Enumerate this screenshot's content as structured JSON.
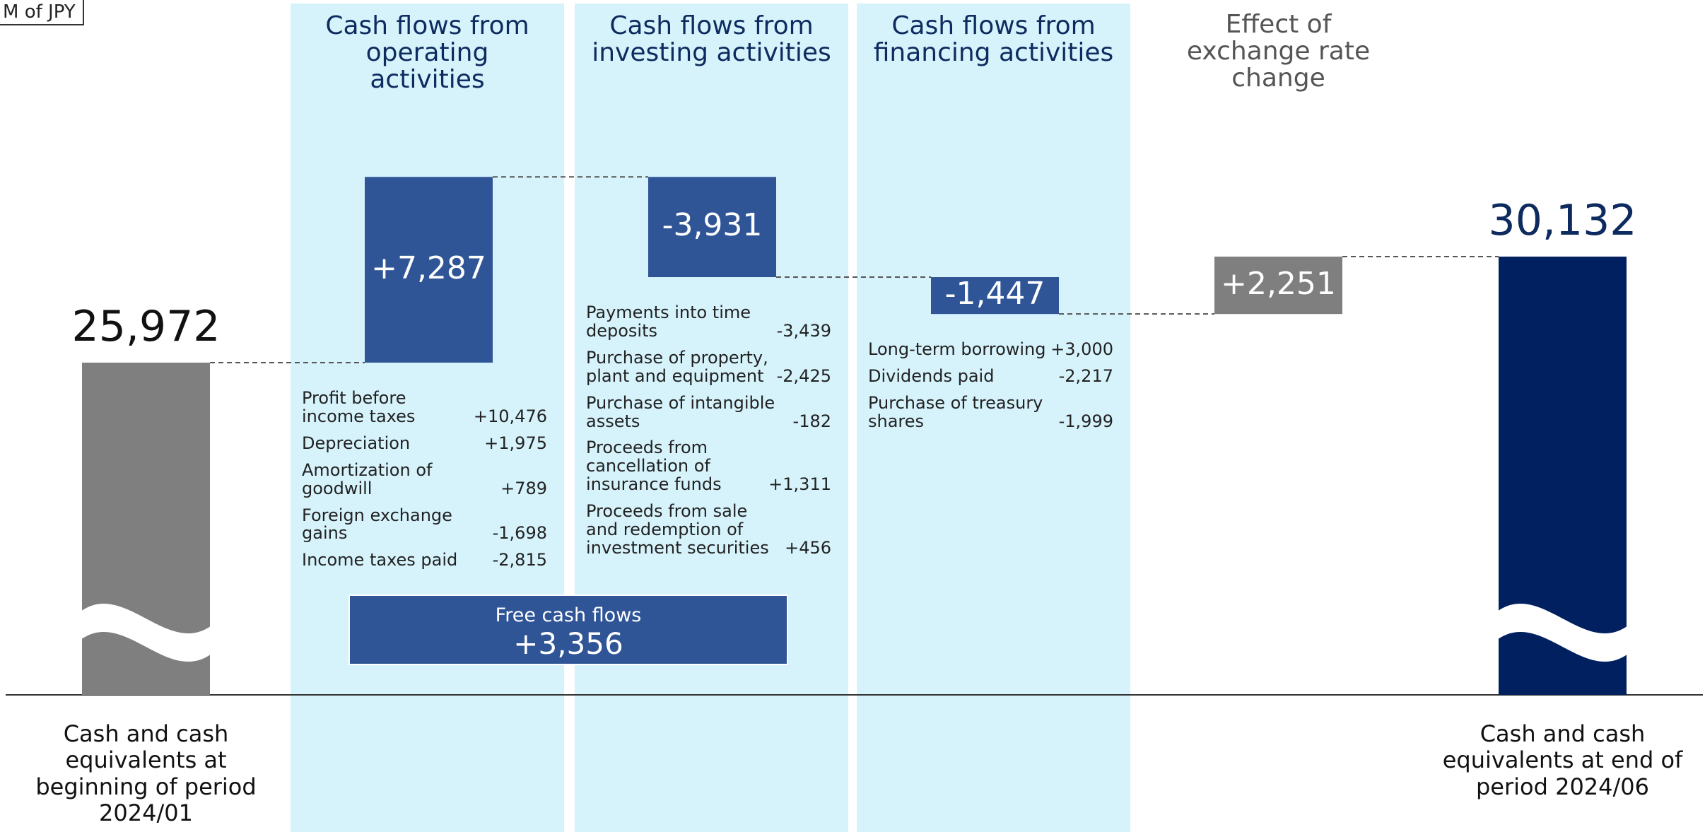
{
  "unit_label": "M of JPY",
  "chart_data": {
    "type": "waterfall",
    "categories": [
      "Cash and cash equivalents at beginning of period 2024/01",
      "Cash flows from operating activities",
      "Cash flows from investing activities",
      "Cash flows from financing activities",
      "Effect of exchange rate change",
      "Cash and cash equivalents at end of period 2024/06"
    ],
    "values": [
      25972,
      7287,
      -3931,
      -1447,
      2251,
      30132
    ],
    "value_labels": [
      "25,972",
      "+7,287",
      "-3,931",
      "-1,447",
      "+2,251",
      "30,132"
    ],
    "colors": [
      "#7f7f7f",
      "#2f5597",
      "#2f5597",
      "#2f5597",
      "#7f7f7f",
      "#002060"
    ],
    "details": [
      [],
      [
        {
          "label": "Profit before income taxes",
          "value": "+10,476"
        },
        {
          "label": "Depreciation",
          "value": "+1,975"
        },
        {
          "label": "Amortization of goodwill",
          "value": "+789"
        },
        {
          "label": "Foreign exchange gains",
          "value": "-1,698"
        },
        {
          "label": "Income taxes paid",
          "value": "-2,815"
        }
      ],
      [
        {
          "label": "Payments into time deposits",
          "value": "-3,439"
        },
        {
          "label": "Purchase of property, plant and equipment",
          "value": "-2,425"
        },
        {
          "label": "Purchase of intangible assets",
          "value": "-182"
        },
        {
          "label": "Proceeds from cancellation of insurance funds",
          "value": "+1,311"
        },
        {
          "label": "Proceeds from sale and redemption of investment securities",
          "value": "+456"
        }
      ],
      [
        {
          "label": "Long-term borrowing",
          "value": "+3,000"
        },
        {
          "label": "Dividends paid",
          "value": "-2,217"
        },
        {
          "label": "Purchase of treasury shares",
          "value": "-1,999"
        }
      ],
      [],
      []
    ],
    "free_cash_flows": {
      "label": "Free cash flows",
      "value": "+3,356"
    }
  }
}
